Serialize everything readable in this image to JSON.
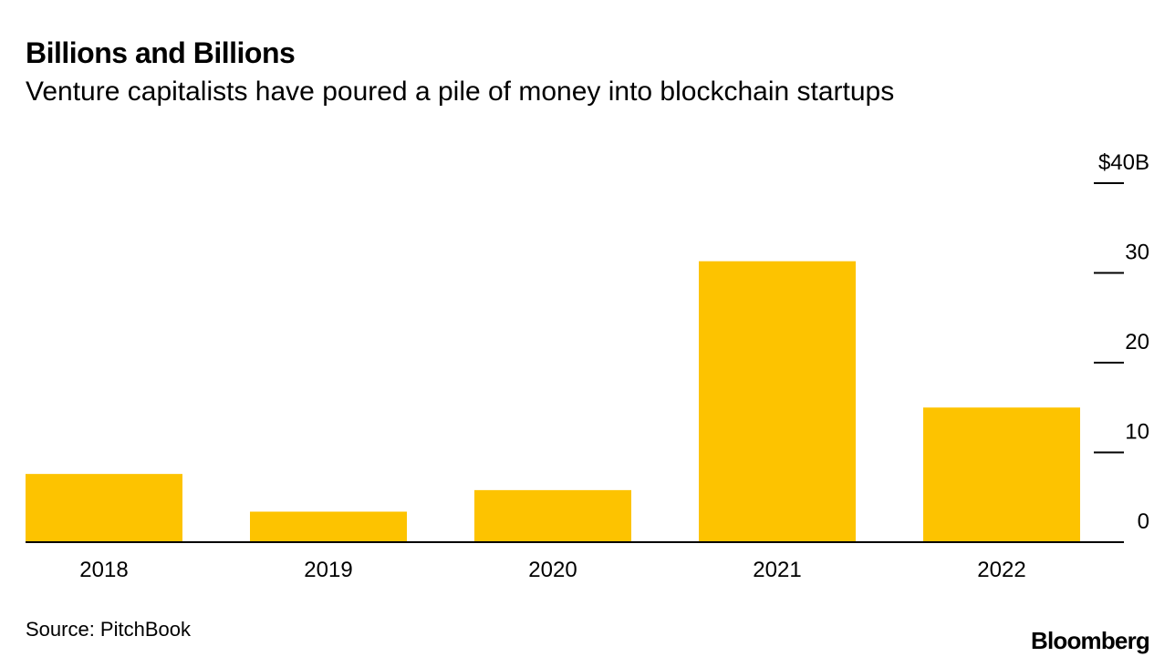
{
  "header": {
    "title": "Billions and Billions",
    "subtitle": "Venture capitalists have poured a pile of money into blockchain startups"
  },
  "footer": {
    "source": "Source: PitchBook",
    "brand": "Bloomberg"
  },
  "colors": {
    "bar": "#FDC300",
    "axis": "#000000",
    "text": "#000000"
  },
  "chart_data": {
    "type": "bar",
    "title": "Billions and Billions",
    "subtitle": "Venture capitalists have poured a pile of money into blockchain startups",
    "xlabel": "",
    "ylabel": "",
    "categories": [
      "2018",
      "2019",
      "2020",
      "2021",
      "2022"
    ],
    "values": [
      7.6,
      3.4,
      5.8,
      31.3,
      15.0
    ],
    "ylim": [
      0,
      40
    ],
    "yticks": [
      0,
      10,
      20,
      30,
      40
    ],
    "ytick_labels": [
      "0",
      "10",
      "20",
      "30",
      "$40B"
    ],
    "grid": false,
    "y_axis_side": "right"
  }
}
